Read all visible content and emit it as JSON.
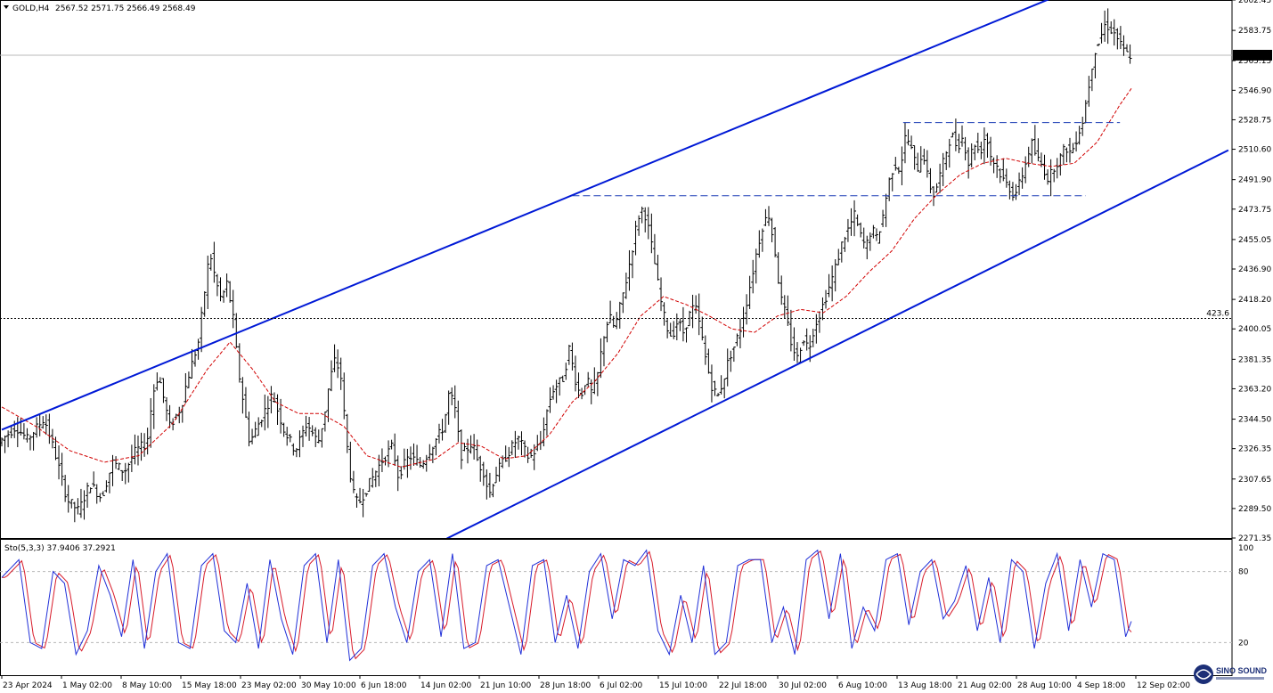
{
  "header": {
    "symbol": "GOLD,H4",
    "ohlc": "2567.52 2571.75 2566.49 2568.49"
  },
  "indicator": {
    "label": "Sto(5,3,3) 37.9406 37.2921",
    "levels": [
      "100",
      "80",
      "20"
    ]
  },
  "watermark": {
    "line1": "SINO SOUND"
  },
  "colors": {
    "background": "#ffffff",
    "candles": "#000000",
    "channel": "#0019d6",
    "level_dashed": "#1a3bb5",
    "moving_average": "#d10000",
    "stoch_main": "#2130d8",
    "stoch_signal": "#d81b2a",
    "current_price_bg": "#000000"
  },
  "chart_data": [
    {
      "type": "candlestick",
      "title": "",
      "symbol": "GOLD",
      "timeframe": "H4",
      "ylim": [
        2271.35,
        2602.45
      ],
      "y_ticks": [
        "2602.45",
        "2583.75",
        "2565.15",
        "2546.90",
        "2528.75",
        "2510.60",
        "2491.90",
        "2473.75",
        "2455.05",
        "2436.90",
        "2418.20",
        "2400.05",
        "2381.35",
        "2363.20",
        "2344.50",
        "2326.35",
        "2307.65",
        "2289.50",
        "2271.35"
      ],
      "x_ticks": [
        "23 Apr 2024",
        "1 May 02:00",
        "8 May 10:00",
        "15 May 18:00",
        "23 May 02:00",
        "30 May 10:00",
        "6 Jun 18:00",
        "14 Jun 02:00",
        "21 Jun 10:00",
        "28 Jun 18:00",
        "6 Jul 02:00",
        "15 Jul 10:00",
        "22 Jul 18:00",
        "30 Jul 02:00",
        "6 Aug 10:00",
        "13 Aug 18:00",
        "21 Aug 02:00",
        "28 Aug 10:00",
        "4 Sep 18:00",
        "12 Sep 02:00"
      ],
      "current_price": "2568.49",
      "horizontal_level_label": "423.6",
      "horizontal_level_value": 2406.5,
      "price_path": [
        [
          0,
          2330
        ],
        [
          3,
          2340
        ],
        [
          5,
          2332
        ],
        [
          8,
          2345
        ],
        [
          10,
          2322
        ],
        [
          12,
          2295
        ],
        [
          14,
          2288
        ],
        [
          16,
          2305
        ],
        [
          18,
          2296
        ],
        [
          20,
          2318
        ],
        [
          22,
          2312
        ],
        [
          24,
          2325
        ],
        [
          26,
          2330
        ],
        [
          27,
          2360
        ],
        [
          28,
          2372
        ],
        [
          30,
          2340
        ],
        [
          32,
          2352
        ],
        [
          33,
          2368
        ],
        [
          35,
          2392
        ],
        [
          36,
          2420
        ],
        [
          37,
          2448
        ],
        [
          38,
          2430
        ],
        [
          39,
          2418
        ],
        [
          40,
          2428
        ],
        [
          41,
          2410
        ],
        [
          42,
          2375
        ],
        [
          44,
          2330
        ],
        [
          46,
          2345
        ],
        [
          48,
          2360
        ],
        [
          50,
          2338
        ],
        [
          52,
          2325
        ],
        [
          54,
          2342
        ],
        [
          56,
          2330
        ],
        [
          57,
          2345
        ],
        [
          58,
          2368
        ],
        [
          59,
          2382
        ],
        [
          60,
          2370
        ],
        [
          61,
          2330
        ],
        [
          62,
          2300
        ],
        [
          63,
          2292
        ],
        [
          65,
          2305
        ],
        [
          67,
          2318
        ],
        [
          69,
          2328
        ],
        [
          70,
          2310
        ],
        [
          72,
          2322
        ],
        [
          74,
          2316
        ],
        [
          76,
          2328
        ],
        [
          78,
          2340
        ],
        [
          79,
          2362
        ],
        [
          80,
          2350
        ],
        [
          81,
          2322
        ],
        [
          83,
          2330
        ],
        [
          84,
          2318
        ],
        [
          85,
          2312
        ],
        [
          86,
          2298
        ],
        [
          87,
          2310
        ],
        [
          89,
          2322
        ],
        [
          91,
          2333
        ],
        [
          93,
          2320
        ],
        [
          95,
          2330
        ],
        [
          96,
          2348
        ],
        [
          97,
          2362
        ],
        [
          99,
          2370
        ],
        [
          100,
          2388
        ],
        [
          101,
          2370
        ],
        [
          102,
          2358
        ],
        [
          103,
          2370
        ],
        [
          104,
          2360
        ],
        [
          105,
          2372
        ],
        [
          106,
          2395
        ],
        [
          107,
          2408
        ],
        [
          108,
          2400
        ],
        [
          109,
          2415
        ],
        [
          110,
          2430
        ],
        [
          111,
          2448
        ],
        [
          112,
          2468
        ],
        [
          113,
          2475
        ],
        [
          114,
          2460
        ],
        [
          115,
          2440
        ],
        [
          116,
          2418
        ],
        [
          117,
          2402
        ],
        [
          118,
          2395
        ],
        [
          119,
          2405
        ],
        [
          120,
          2398
        ],
        [
          121,
          2408
        ],
        [
          122,
          2415
        ],
        [
          123,
          2400
        ],
        [
          124,
          2380
        ],
        [
          125,
          2365
        ],
        [
          126,
          2358
        ],
        [
          127,
          2368
        ],
        [
          128,
          2382
        ],
        [
          129,
          2390
        ],
        [
          130,
          2400
        ],
        [
          131,
          2415
        ],
        [
          132,
          2432
        ],
        [
          133,
          2450
        ],
        [
          134,
          2465
        ],
        [
          135,
          2470
        ],
        [
          136,
          2450
        ],
        [
          137,
          2420
        ],
        [
          138,
          2408
        ],
        [
          139,
          2390
        ],
        [
          140,
          2382
        ],
        [
          141,
          2395
        ],
        [
          142,
          2388
        ],
        [
          143,
          2402
        ],
        [
          144,
          2410
        ],
        [
          145,
          2420
        ],
        [
          146,
          2430
        ],
        [
          147,
          2442
        ],
        [
          148,
          2455
        ],
        [
          149,
          2462
        ],
        [
          150,
          2470
        ],
        [
          151,
          2458
        ],
        [
          152,
          2450
        ],
        [
          153,
          2462
        ],
        [
          154,
          2455
        ],
        [
          155,
          2470
        ],
        [
          156,
          2490
        ],
        [
          157,
          2502
        ],
        [
          158,
          2498
        ],
        [
          159,
          2520
        ],
        [
          160,
          2510
        ],
        [
          161,
          2498
        ],
        [
          162,
          2510
        ],
        [
          163,
          2490
        ],
        [
          164,
          2482
        ],
        [
          165,
          2495
        ],
        [
          166,
          2508
        ],
        [
          167,
          2520
        ],
        [
          168,
          2512
        ],
        [
          169,
          2518
        ],
        [
          170,
          2502
        ],
        [
          171,
          2515
        ],
        [
          172,
          2508
        ],
        [
          173,
          2520
        ],
        [
          174,
          2505
        ],
        [
          175,
          2500
        ],
        [
          176,
          2492
        ],
        [
          177,
          2488
        ],
        [
          178,
          2482
        ],
        [
          179,
          2490
        ],
        [
          180,
          2502
        ],
        [
          181,
          2515
        ],
        [
          182,
          2505
        ],
        [
          183,
          2500
        ],
        [
          184,
          2492
        ],
        [
          185,
          2500
        ],
        [
          186,
          2505
        ],
        [
          187,
          2512
        ],
        [
          188,
          2508
        ],
        [
          189,
          2518
        ],
        [
          190,
          2528
        ],
        [
          191,
          2548
        ],
        [
          192,
          2570
        ],
        [
          193,
          2578
        ],
        [
          194,
          2588
        ],
        [
          195,
          2584
        ],
        [
          196,
          2580
        ],
        [
          197,
          2572
        ],
        [
          198,
          2568.49
        ]
      ],
      "moving_average_path": [
        [
          0,
          2352
        ],
        [
          6,
          2340
        ],
        [
          12,
          2325
        ],
        [
          18,
          2318
        ],
        [
          24,
          2322
        ],
        [
          30,
          2342
        ],
        [
          36,
          2375
        ],
        [
          40,
          2392
        ],
        [
          44,
          2375
        ],
        [
          48,
          2355
        ],
        [
          52,
          2348
        ],
        [
          56,
          2348
        ],
        [
          60,
          2340
        ],
        [
          64,
          2322
        ],
        [
          70,
          2315
        ],
        [
          76,
          2320
        ],
        [
          80,
          2330
        ],
        [
          84,
          2328
        ],
        [
          88,
          2320
        ],
        [
          92,
          2322
        ],
        [
          96,
          2335
        ],
        [
          100,
          2355
        ],
        [
          104,
          2368
        ],
        [
          108,
          2385
        ],
        [
          112,
          2408
        ],
        [
          116,
          2420
        ],
        [
          120,
          2415
        ],
        [
          124,
          2408
        ],
        [
          128,
          2400
        ],
        [
          132,
          2398
        ],
        [
          136,
          2408
        ],
        [
          140,
          2412
        ],
        [
          144,
          2410
        ],
        [
          148,
          2420
        ],
        [
          152,
          2435
        ],
        [
          156,
          2448
        ],
        [
          160,
          2468
        ],
        [
          164,
          2483
        ],
        [
          168,
          2495
        ],
        [
          172,
          2502
        ],
        [
          176,
          2505
        ],
        [
          180,
          2502
        ],
        [
          184,
          2500
        ],
        [
          188,
          2502
        ],
        [
          192,
          2515
        ],
        [
          196,
          2538
        ],
        [
          198,
          2548
        ]
      ],
      "channel_lines": [
        {
          "name": "upper",
          "points": [
            [
              0,
              2338
            ],
            [
              185,
              2605
            ]
          ]
        },
        {
          "name": "lower",
          "points": [
            [
              78,
              2271
            ],
            [
              215,
              2510
            ]
          ]
        }
      ],
      "dashed_levels": [
        {
          "value": 2482,
          "from": 100,
          "to": 190
        },
        {
          "value": 2527,
          "from": 158,
          "to": 196
        }
      ]
    },
    {
      "type": "line",
      "title": "",
      "name": "Stochastic",
      "ylim": [
        0,
        100
      ],
      "levels": [
        80,
        20
      ],
      "main_last": 37.9406,
      "signal_last": 37.2921,
      "main_path": [
        [
          0,
          75
        ],
        [
          3,
          90
        ],
        [
          5,
          20
        ],
        [
          7,
          15
        ],
        [
          9,
          80
        ],
        [
          11,
          70
        ],
        [
          13,
          10
        ],
        [
          15,
          30
        ],
        [
          17,
          85
        ],
        [
          19,
          60
        ],
        [
          21,
          25
        ],
        [
          23,
          90
        ],
        [
          25,
          15
        ],
        [
          27,
          80
        ],
        [
          29,
          95
        ],
        [
          31,
          20
        ],
        [
          33,
          15
        ],
        [
          35,
          85
        ],
        [
          37,
          95
        ],
        [
          39,
          30
        ],
        [
          41,
          20
        ],
        [
          43,
          70
        ],
        [
          45,
          15
        ],
        [
          47,
          90
        ],
        [
          49,
          40
        ],
        [
          51,
          10
        ],
        [
          53,
          85
        ],
        [
          55,
          95
        ],
        [
          57,
          20
        ],
        [
          59,
          90
        ],
        [
          61,
          5
        ],
        [
          63,
          15
        ],
        [
          65,
          85
        ],
        [
          67,
          95
        ],
        [
          69,
          50
        ],
        [
          71,
          20
        ],
        [
          73,
          80
        ],
        [
          75,
          90
        ],
        [
          77,
          25
        ],
        [
          79,
          95
        ],
        [
          81,
          15
        ],
        [
          83,
          20
        ],
        [
          85,
          85
        ],
        [
          87,
          90
        ],
        [
          89,
          50
        ],
        [
          91,
          10
        ],
        [
          93,
          85
        ],
        [
          95,
          90
        ],
        [
          97,
          20
        ],
        [
          99,
          60
        ],
        [
          101,
          15
        ],
        [
          103,
          80
        ],
        [
          105,
          95
        ],
        [
          107,
          40
        ],
        [
          109,
          90
        ],
        [
          111,
          85
        ],
        [
          113,
          98
        ],
        [
          115,
          30
        ],
        [
          117,
          10
        ],
        [
          119,
          60
        ],
        [
          121,
          20
        ],
        [
          123,
          85
        ],
        [
          125,
          10
        ],
        [
          127,
          20
        ],
        [
          129,
          85
        ],
        [
          131,
          90
        ],
        [
          133,
          90
        ],
        [
          135,
          20
        ],
        [
          137,
          50
        ],
        [
          139,
          10
        ],
        [
          141,
          90
        ],
        [
          143,
          98
        ],
        [
          145,
          40
        ],
        [
          147,
          95
        ],
        [
          149,
          15
        ],
        [
          151,
          50
        ],
        [
          153,
          30
        ],
        [
          155,
          90
        ],
        [
          157,
          95
        ],
        [
          159,
          35
        ],
        [
          161,
          80
        ],
        [
          163,
          90
        ],
        [
          165,
          40
        ],
        [
          167,
          55
        ],
        [
          169,
          85
        ],
        [
          171,
          30
        ],
        [
          173,
          75
        ],
        [
          175,
          20
        ],
        [
          177,
          90
        ],
        [
          179,
          80
        ],
        [
          181,
          15
        ],
        [
          183,
          70
        ],
        [
          185,
          95
        ],
        [
          187,
          30
        ],
        [
          189,
          90
        ],
        [
          191,
          50
        ],
        [
          193,
          95
        ],
        [
          195,
          90
        ],
        [
          197,
          25
        ],
        [
          198,
          38
        ]
      ]
    }
  ]
}
